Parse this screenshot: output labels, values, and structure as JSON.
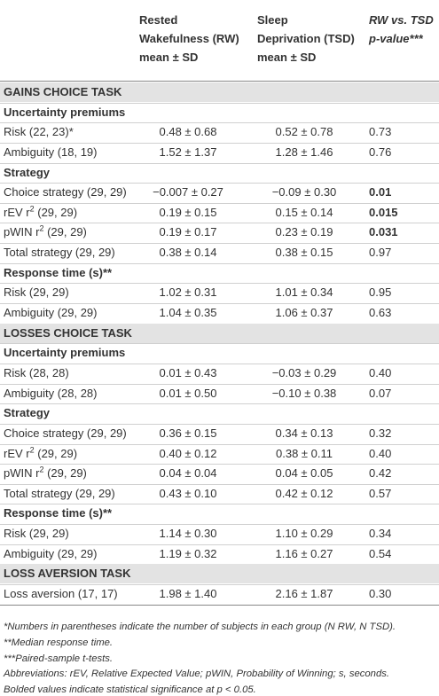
{
  "header": {
    "columns": [
      {
        "lines": [
          "Rested",
          "Wakefulness (RW)",
          "mean ± SD"
        ]
      },
      {
        "lines": [
          "Sleep",
          "Deprivation (TSD)",
          "mean ± SD"
        ]
      },
      {
        "lines": [
          "RW vs. TSD",
          "p-value***"
        ]
      }
    ]
  },
  "sections": [
    {
      "title": "GAINS CHOICE TASK",
      "groups": [
        {
          "title": "Uncertainty premiums",
          "rows": [
            {
              "label": "Risk (22, 23)*",
              "rw": "0.48 ± 0.68",
              "tsd": "0.52 ± 0.78",
              "p": "0.73"
            },
            {
              "label": "Ambiguity (18, 19)",
              "rw": "1.52 ± 1.37",
              "tsd": "1.28 ± 1.46",
              "p": "0.76"
            }
          ]
        },
        {
          "title": "Strategy",
          "rows": [
            {
              "label": "Choice strategy (29, 29)",
              "rw": "−0.007 ± 0.27",
              "tsd": "−0.09 ± 0.30",
              "p": "0.01",
              "bold": true
            },
            {
              "label": "rEV r",
              "sup": "2",
              "after": " (29, 29)",
              "rw": "0.19 ± 0.15",
              "tsd": "0.15 ± 0.14",
              "p": "0.015",
              "bold": true
            },
            {
              "label": "pWIN r",
              "sup": "2",
              "after": " (29, 29)",
              "rw": "0.19 ± 0.17",
              "tsd": "0.23 ± 0.19",
              "p": "0.031",
              "bold": true
            },
            {
              "label": "Total strategy (29, 29)",
              "rw": "0.38 ± 0.14",
              "tsd": "0.38 ± 0.15",
              "p": "0.97"
            }
          ]
        },
        {
          "title": "Response time (s)**",
          "rows": [
            {
              "label": "Risk (29, 29)",
              "rw": "1.02 ± 0.31",
              "tsd": "1.01 ± 0.34",
              "p": "0.95"
            },
            {
              "label": "Ambiguity (29, 29)",
              "rw": "1.04 ± 0.35",
              "tsd": "1.06 ± 0.37",
              "p": "0.63"
            }
          ]
        }
      ]
    },
    {
      "title": "LOSSES CHOICE TASK",
      "groups": [
        {
          "title": "Uncertainty premiums",
          "rows": [
            {
              "label": "Risk (28, 28)",
              "rw": "0.01 ± 0.43",
              "tsd": "−0.03 ± 0.29",
              "p": "0.40"
            },
            {
              "label": "Ambiguity (28, 28)",
              "rw": "0.01 ± 0.50",
              "tsd": "−0.10 ± 0.38",
              "p": "0.07"
            }
          ]
        },
        {
          "title": "Strategy",
          "rows": [
            {
              "label": "Choice strategy (29, 29)",
              "rw": "0.36 ± 0.15",
              "tsd": "0.34 ± 0.13",
              "p": "0.32"
            },
            {
              "label": "rEV r",
              "sup": "2",
              "after": " (29, 29)",
              "rw": "0.40 ± 0.12",
              "tsd": "0.38 ± 0.11",
              "p": "0.40"
            },
            {
              "label": "pWIN r",
              "sup": "2",
              "after": " (29, 29)",
              "rw": "0.04 ± 0.04",
              "tsd": "0.04 ± 0.05",
              "p": "0.42"
            },
            {
              "label": "Total strategy (29, 29)",
              "rw": "0.43 ± 0.10",
              "tsd": "0.42 ± 0.12",
              "p": "0.57"
            }
          ]
        },
        {
          "title": "Response time (s)**",
          "rows": [
            {
              "label": "Risk (29, 29)",
              "rw": "1.14 ± 0.30",
              "tsd": "1.10 ± 0.29",
              "p": "0.34"
            },
            {
              "label": "Ambiguity (29, 29)",
              "rw": "1.19 ± 0.32",
              "tsd": "1.16 ± 0.27",
              "p": "0.54"
            }
          ]
        }
      ]
    },
    {
      "title": "LOSS AVERSION TASK",
      "groups": [
        {
          "rows": [
            {
              "label": "Loss aversion (17, 17)",
              "rw": "1.98 ± 1.40",
              "tsd": "2.16 ± 1.87",
              "p": "0.30"
            }
          ]
        }
      ]
    }
  ],
  "notes": [
    "*Numbers in parentheses indicate the number of subjects in each group (N RW, N TSD).",
    "**Median response time.",
    "***Paired-sample t-tests.",
    "Abbreviations: rEV, Relative Expected Value; pWIN, Probability of Winning; s, seconds.",
    "Bolded values indicate statistical significance at p < 0.05."
  ]
}
